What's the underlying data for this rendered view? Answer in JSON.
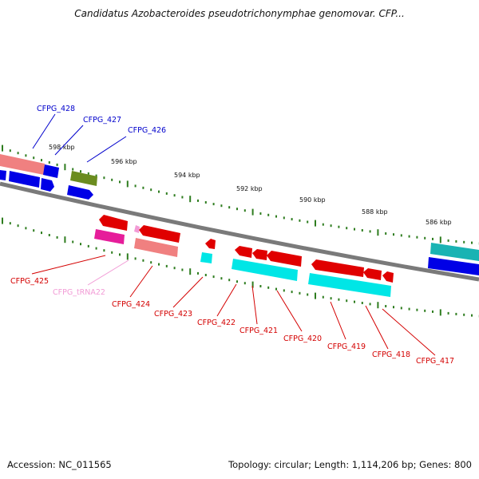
{
  "title": "Candidatus Azobacteroides pseudotrichonymphae genomovar. CFP...",
  "footer": {
    "accession": "Accession: NC_011565",
    "summary": "Topology: circular; Length: 1,114,206 bp; Genes: 800"
  },
  "colors": {
    "backbone": "#7a7a7a",
    "tick": "#2e7d1f",
    "red": "#e00000",
    "salmon": "#f08080",
    "blue": "#0000e6",
    "cyan": "#00e6e6",
    "teal": "#19b3b3",
    "magenta": "#e61d9a",
    "olive": "#6b8c1f",
    "label_blue": "#0000cc",
    "label_red": "#d40000",
    "label_pink": "#f29bd6"
  },
  "scale_labels": [
    "598 kbp",
    "596 kbp",
    "594 kbp",
    "592 kbp",
    "590 kbp",
    "588 kbp",
    "586 kbp"
  ],
  "gene_labels": [
    {
      "text": "CFPG_428",
      "color": "label_blue"
    },
    {
      "text": "CFPG_427",
      "color": "label_blue"
    },
    {
      "text": "CFPG_426",
      "color": "label_blue"
    },
    {
      "text": "CFPG_425",
      "color": "label_red"
    },
    {
      "text": "CFPG_tRNA22",
      "color": "label_pink"
    },
    {
      "text": "CFPG_424",
      "color": "label_red"
    },
    {
      "text": "CFPG_423",
      "color": "label_red"
    },
    {
      "text": "CFPG_422",
      "color": "label_red"
    },
    {
      "text": "CFPG_421",
      "color": "label_red"
    },
    {
      "text": "CFPG_420",
      "color": "label_red"
    },
    {
      "text": "CFPG_419",
      "color": "label_red"
    },
    {
      "text": "CFPG_418",
      "color": "label_red"
    },
    {
      "text": "CFPG_417",
      "color": "label_red"
    }
  ]
}
